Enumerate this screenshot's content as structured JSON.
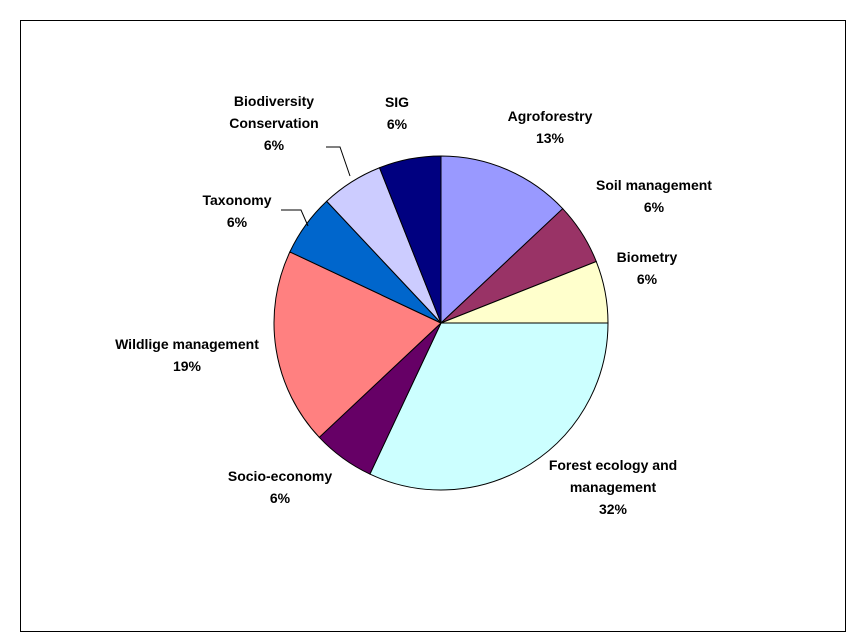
{
  "chart_data": {
    "type": "pie",
    "title": "",
    "start_angle_deg": 0,
    "direction": "clockwise",
    "legend": "none",
    "slices": [
      {
        "lines": [
          "Agroforestry",
          "13%"
        ],
        "value": 13,
        "color": "#9999FF"
      },
      {
        "lines": [
          "Soil management",
          "6%"
        ],
        "value": 6,
        "color": "#993366"
      },
      {
        "lines": [
          "Biometry",
          "6%"
        ],
        "value": 6,
        "color": "#FFFFCC"
      },
      {
        "lines": [
          "Forest ecology and",
          "management",
          "32%"
        ],
        "value": 32,
        "color": "#CCFFFF"
      },
      {
        "lines": [
          "Socio-economy",
          "6%"
        ],
        "value": 6,
        "color": "#660066"
      },
      {
        "lines": [
          "Wildlige management",
          "19%"
        ],
        "value": 19,
        "color": "#FF8080"
      },
      {
        "lines": [
          "Taxonomy",
          "6%"
        ],
        "value": 6,
        "color": "#0066CC"
      },
      {
        "lines": [
          "Biodiversity",
          "Conservation",
          "6%"
        ],
        "value": 6,
        "color": "#CCCCFF"
      },
      {
        "lines": [
          "SIG",
          "6%"
        ],
        "value": 6,
        "color": "#000080"
      }
    ]
  }
}
